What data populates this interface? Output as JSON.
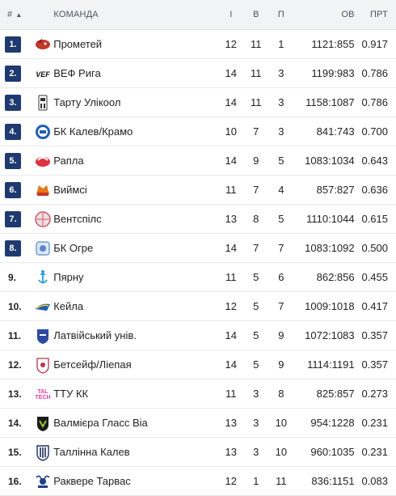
{
  "header": {
    "pos": "#",
    "team": "КОМАНДА",
    "games": "І",
    "wins": "В",
    "losses": "П",
    "points": "ОВ",
    "pct": "ПРТ"
  },
  "colors": {
    "badge": "#1f3a6e",
    "header_bg": "#f2f3f5"
  },
  "rows": [
    {
      "pos": "1.",
      "badge": true,
      "name": "Прометей",
      "g": "12",
      "w": "11",
      "l": "1",
      "score": "1121:855",
      "pct": "0.917",
      "logo": "prometey-logo"
    },
    {
      "pos": "2.",
      "badge": true,
      "name": "ВЕФ Рига",
      "g": "14",
      "w": "11",
      "l": "3",
      "score": "1199:983",
      "pct": "0.786",
      "logo": "vef-logo"
    },
    {
      "pos": "3.",
      "badge": true,
      "name": "Тарту Улікоол",
      "g": "14",
      "w": "11",
      "l": "3",
      "score": "1158:1087",
      "pct": "0.786",
      "logo": "tartu-logo"
    },
    {
      "pos": "4.",
      "badge": true,
      "name": "БК Калев/Крамо",
      "g": "10",
      "w": "7",
      "l": "3",
      "score": "841:743",
      "pct": "0.700",
      "logo": "kalev-cramo-logo"
    },
    {
      "pos": "5.",
      "badge": true,
      "name": "Рапла",
      "g": "14",
      "w": "9",
      "l": "5",
      "score": "1083:1034",
      "pct": "0.643",
      "logo": "rapla-logo"
    },
    {
      "pos": "6.",
      "badge": true,
      "name": "Виймсі",
      "g": "11",
      "w": "7",
      "l": "4",
      "score": "857:827",
      "pct": "0.636",
      "logo": "viimsi-logo"
    },
    {
      "pos": "7.",
      "badge": true,
      "name": "Вентспілс",
      "g": "13",
      "w": "8",
      "l": "5",
      "score": "1110:1044",
      "pct": "0.615",
      "logo": "ventspils-logo"
    },
    {
      "pos": "8.",
      "badge": true,
      "name": "БК Огре",
      "g": "14",
      "w": "7",
      "l": "7",
      "score": "1083:1092",
      "pct": "0.500",
      "logo": "ogre-logo"
    },
    {
      "pos": "9.",
      "badge": false,
      "name": "Пярну",
      "g": "11",
      "w": "5",
      "l": "6",
      "score": "862:856",
      "pct": "0.455",
      "logo": "parnu-logo"
    },
    {
      "pos": "10.",
      "badge": false,
      "name": "Кейла",
      "g": "12",
      "w": "5",
      "l": "7",
      "score": "1009:1018",
      "pct": "0.417",
      "logo": "keila-logo"
    },
    {
      "pos": "11.",
      "badge": false,
      "name": "Латвійський унів.",
      "g": "14",
      "w": "5",
      "l": "9",
      "score": "1072:1083",
      "pct": "0.357",
      "logo": "latvia-univ-logo"
    },
    {
      "pos": "12.",
      "badge": false,
      "name": "Бетсейф/Ліепая",
      "g": "14",
      "w": "5",
      "l": "9",
      "score": "1114:1191",
      "pct": "0.357",
      "logo": "liepaja-logo"
    },
    {
      "pos": "13.",
      "badge": false,
      "name": "ТТУ КК",
      "g": "11",
      "w": "3",
      "l": "8",
      "score": "825:857",
      "pct": "0.273",
      "logo": "ttu-logo"
    },
    {
      "pos": "14.",
      "badge": false,
      "name": "Валмієра Гласс Віа",
      "g": "13",
      "w": "3",
      "l": "10",
      "score": "954:1228",
      "pct": "0.231",
      "logo": "valmiera-logo"
    },
    {
      "pos": "15.",
      "badge": false,
      "name": "Таллінна Калев",
      "g": "13",
      "w": "3",
      "l": "10",
      "score": "960:1035",
      "pct": "0.231",
      "logo": "tallinna-kalev-logo"
    },
    {
      "pos": "16.",
      "badge": false,
      "name": "Раквере Тарвас",
      "g": "12",
      "w": "1",
      "l": "11",
      "score": "836:1151",
      "pct": "0.083",
      "logo": "rakvere-logo"
    }
  ]
}
